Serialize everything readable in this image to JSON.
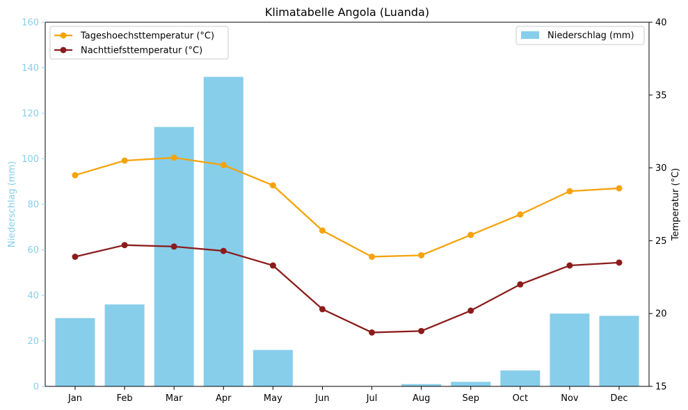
{
  "chart_data": {
    "type": "bar",
    "title": "Klimatabelle Angola (Luanda)",
    "categories": [
      "Jan",
      "Feb",
      "Mar",
      "Apr",
      "May",
      "Jun",
      "Jul",
      "Aug",
      "Sep",
      "Oct",
      "Nov",
      "Dec"
    ],
    "bar_series": {
      "name": "Niederschlag (mm)",
      "color": "#87CEEB",
      "values": [
        30,
        36,
        114,
        136,
        16,
        0,
        0,
        1,
        2,
        7,
        32,
        31
      ]
    },
    "line_series": [
      {
        "name": "Tageshoechsttemperatur (°C)",
        "color": "#F5A30A",
        "values": [
          29.5,
          30.5,
          30.7,
          30.2,
          28.8,
          25.7,
          23.9,
          24.0,
          25.4,
          26.8,
          28.4,
          28.6
        ]
      },
      {
        "name": "Nachttiefsttemperatur (°C)",
        "color": "#8B1C1C",
        "values": [
          23.9,
          24.7,
          24.6,
          24.3,
          23.3,
          20.3,
          18.7,
          18.8,
          20.2,
          22.0,
          23.3,
          23.5
        ]
      }
    ],
    "y_left": {
      "label": "Niederschlag (mm)",
      "ylim": [
        0,
        160
      ],
      "ticks": [
        0,
        20,
        40,
        60,
        80,
        100,
        120,
        140,
        160
      ],
      "color": "#87CEEB"
    },
    "y_right": {
      "label": "Temperatur (°C)",
      "ylim": [
        15,
        40
      ],
      "ticks": [
        15,
        20,
        25,
        30,
        35,
        40
      ],
      "color": "#000000"
    },
    "grid": false,
    "legend_lines_placement": "top-left",
    "legend_bars_placement": "top-right"
  }
}
